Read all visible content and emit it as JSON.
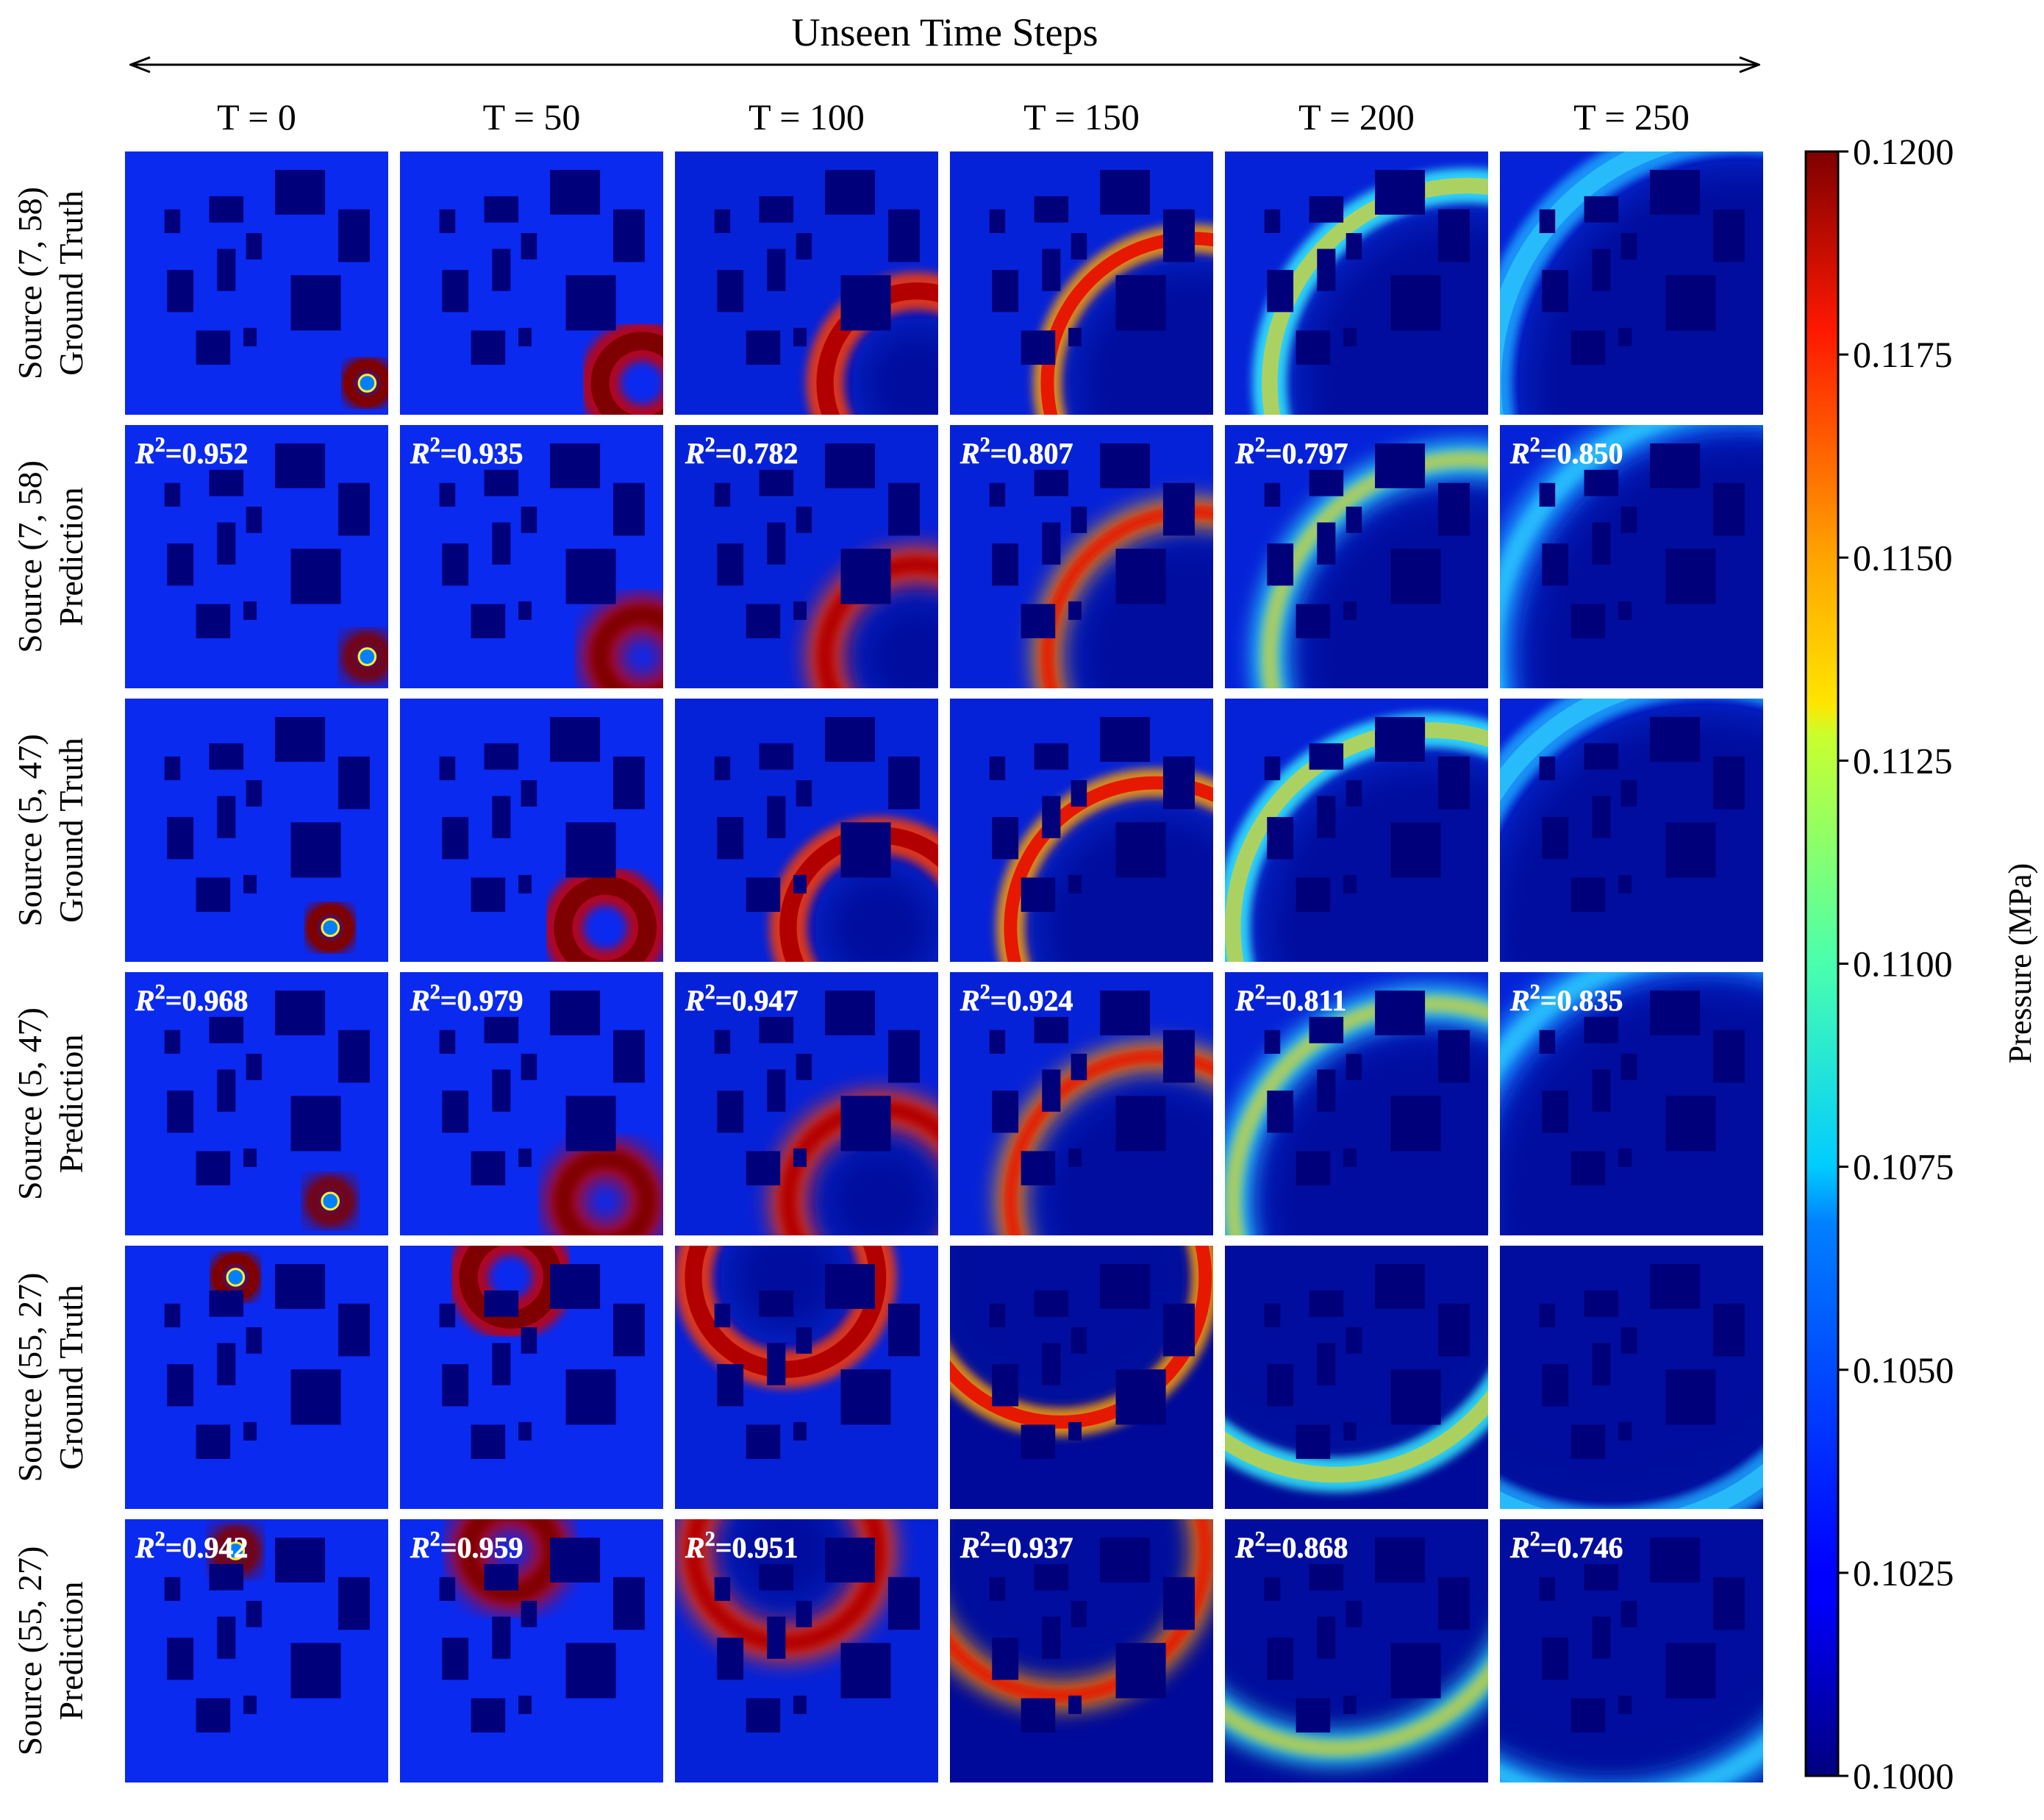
{
  "chart_data": {
    "type": "heatmap",
    "title": "Unseen Time Steps",
    "columns": [
      "T = 0",
      "T = 50",
      "T = 100",
      "T = 150",
      "T = 200",
      "T = 250"
    ],
    "rows": [
      {
        "label_line1": "Source (7, 58)",
        "label_line2": "Ground Truth",
        "source": [
          7,
          58
        ],
        "kind": "ground_truth",
        "r2_texts": []
      },
      {
        "label_line1": "Source (7, 58)",
        "label_line2": "Prediction",
        "source": [
          7,
          58
        ],
        "kind": "prediction",
        "r2_values": [
          0.952,
          0.935,
          0.782,
          0.807,
          0.797,
          0.85
        ],
        "r2_texts": [
          "=0.952",
          "=0.935",
          "=0.782",
          "=0.807",
          "=0.797",
          "=0.850"
        ]
      },
      {
        "label_line1": "Source (5, 47)",
        "label_line2": "Ground Truth",
        "source": [
          5,
          47
        ],
        "kind": "ground_truth",
        "r2_texts": []
      },
      {
        "label_line1": "Source (5, 47)",
        "label_line2": "Prediction",
        "source": [
          5,
          47
        ],
        "kind": "prediction",
        "r2_values": [
          0.968,
          0.979,
          0.947,
          0.924,
          0.811,
          0.835
        ],
        "r2_texts": [
          "=0.968",
          "=0.979",
          "=0.947",
          "=0.924",
          "=0.811",
          "=0.835"
        ]
      },
      {
        "label_line1": "Source (55, 27)",
        "label_line2": "Ground Truth",
        "source": [
          55,
          27
        ],
        "kind": "ground_truth",
        "r2_texts": []
      },
      {
        "label_line1": "Source (55, 27)",
        "label_line2": "Prediction",
        "source": [
          55,
          27
        ],
        "kind": "prediction",
        "r2_values": [
          0.942,
          0.959,
          0.951,
          0.937,
          0.868,
          0.746
        ],
        "r2_texts": [
          "=0.942",
          "=0.959",
          "=0.951",
          "=0.937",
          "=0.868",
          "=0.746"
        ]
      }
    ],
    "r2_symbol": "R",
    "r2_exponent": "2",
    "colorbar": {
      "label": "Pressure (MPa)",
      "min": 0.1,
      "max": 0.12,
      "ticks": [
        "0.1000",
        "0.1025",
        "0.1050",
        "0.1075",
        "0.1100",
        "0.1125",
        "0.1150",
        "0.1175",
        "0.1200"
      ],
      "colormap": "jet"
    },
    "colors": {
      "background_field": "#0a2af0",
      "obstacle": "#00007a",
      "wave_peak": "#7f0000",
      "r2_text": "#ffffff"
    }
  }
}
